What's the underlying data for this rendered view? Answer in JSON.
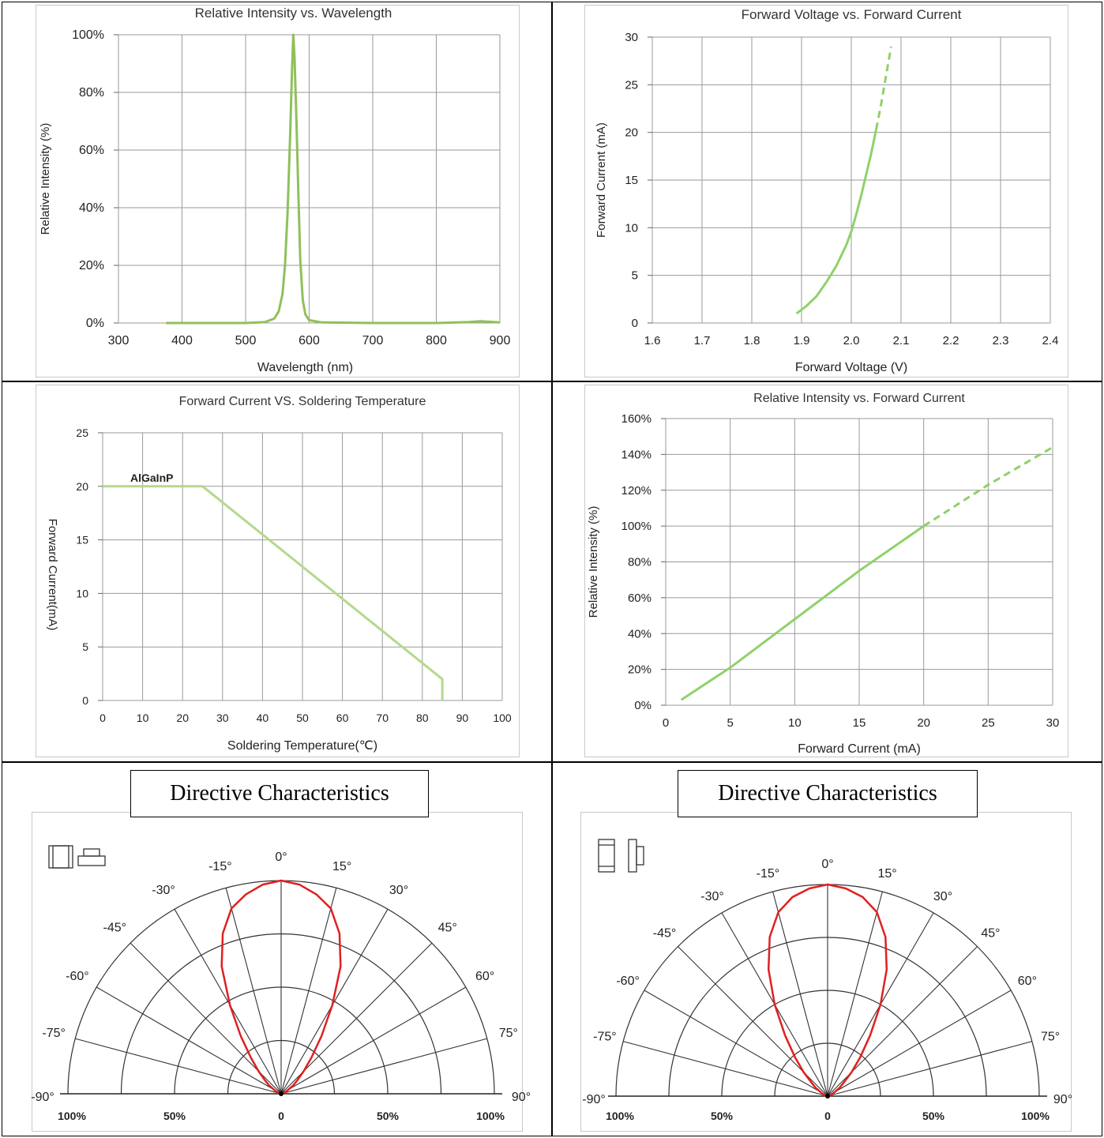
{
  "chart_data": [
    {
      "type": "line",
      "title": "Relative Intensity vs. Wavelength",
      "xlabel": "Wavelength (nm)",
      "ylabel": "Relative Intensity (%)",
      "xlim": [
        300,
        900
      ],
      "ylim": [
        0,
        100
      ],
      "x_ticks": [
        "300",
        "400",
        "500",
        "600",
        "700",
        "800",
        "900"
      ],
      "y_ticks": [
        "0%",
        "20%",
        "40%",
        "60%",
        "80%",
        "100%"
      ],
      "grid": true,
      "line_color": "#8fc05a",
      "series": [
        {
          "x": [
            375,
            500,
            530,
            545,
            552,
            558,
            562,
            566,
            570,
            573,
            575,
            577,
            580,
            583,
            586,
            590,
            594,
            600,
            620,
            700,
            800,
            850,
            870,
            885,
            900
          ],
          "y": [
            0,
            0,
            0.3,
            1.5,
            4,
            10,
            20,
            38,
            65,
            88,
            100,
            92,
            70,
            45,
            22,
            8,
            3,
            1,
            0.2,
            0,
            0,
            0.3,
            0.6,
            0.4,
            0.2
          ]
        }
      ]
    },
    {
      "type": "line",
      "title": "Forward Voltage vs. Forward Current",
      "xlabel": "Forward Voltage (V)",
      "ylabel": "Forward Current (mA)",
      "xlim": [
        1.6,
        2.4
      ],
      "ylim": [
        0,
        30
      ],
      "x_ticks": [
        "1.6",
        "1.7",
        "1.8",
        "1.9",
        "2.0",
        "2.1",
        "2.2",
        "2.3",
        "2.4"
      ],
      "y_ticks": [
        "0",
        "5",
        "10",
        "15",
        "20",
        "25",
        "30"
      ],
      "grid": true,
      "line_color": "#8fd16a",
      "series": [
        {
          "style": "solid",
          "x": [
            1.89,
            1.91,
            1.93,
            1.95,
            1.97,
            1.99,
            2.0,
            2.01,
            2.02,
            2.03,
            2.04,
            2.05
          ],
          "y": [
            1,
            1.8,
            2.8,
            4.3,
            6.0,
            8.2,
            9.6,
            11.4,
            13.4,
            15.6,
            17.8,
            20.3
          ]
        },
        {
          "style": "dashed",
          "x": [
            2.05,
            2.06,
            2.07,
            2.08
          ],
          "y": [
            20.3,
            23.0,
            26.0,
            29.0
          ]
        }
      ]
    },
    {
      "type": "line",
      "title": "Forward Current VS. Soldering Temperature",
      "xlabel": "Soldering Temperature(℃)",
      "ylabel": "Forward Current(mA)",
      "xlim": [
        0,
        100
      ],
      "ylim": [
        0,
        25
      ],
      "x_ticks": [
        "0",
        "10",
        "20",
        "30",
        "40",
        "50",
        "60",
        "70",
        "80",
        "90",
        "100"
      ],
      "y_ticks": [
        "0",
        "5",
        "10",
        "15",
        "20",
        "25"
      ],
      "grid": true,
      "line_color": "#b5d88c",
      "annotation": "AlGaInP",
      "series": [
        {
          "x": [
            0,
            25,
            85,
            85
          ],
          "y": [
            20,
            20,
            2,
            0
          ]
        }
      ]
    },
    {
      "type": "line",
      "title": "Relative Intensity vs. Forward Current",
      "xlabel": "Forward Current (mA)",
      "ylabel": "Relative Intensity (%)",
      "xlim": [
        0,
        30
      ],
      "ylim": [
        0,
        160
      ],
      "x_ticks": [
        "0",
        "5",
        "10",
        "15",
        "20",
        "25",
        "30"
      ],
      "y_ticks": [
        "0%",
        "20%",
        "40%",
        "60%",
        "80%",
        "100%",
        "120%",
        "140%",
        "160%"
      ],
      "grid": true,
      "line_color": "#8fd16a",
      "series": [
        {
          "style": "solid",
          "x": [
            1.2,
            5,
            10,
            15,
            20
          ],
          "y": [
            3,
            21,
            48,
            75,
            100
          ]
        },
        {
          "style": "dashed",
          "x": [
            20,
            25,
            30
          ],
          "y": [
            100,
            123,
            144
          ]
        }
      ]
    },
    {
      "type": "polar",
      "title": "Directive Characteristics",
      "angle_labels": [
        "-90°",
        "-75°",
        "-60°",
        "-45°",
        "-30°",
        "-15°",
        "0°",
        "15°",
        "30°",
        "45°",
        "60°",
        "75°",
        "90°"
      ],
      "radial_labels": [
        "100%",
        "50%",
        "0",
        "50%",
        "100%"
      ],
      "line_color": "#e02020",
      "series": [
        {
          "angles": [
            0,
            5,
            10,
            15,
            20,
            25,
            30,
            35,
            40,
            45,
            50,
            55,
            60,
            70,
            80,
            90
          ],
          "values": [
            1.0,
            0.985,
            0.95,
            0.9,
            0.8,
            0.66,
            0.48,
            0.33,
            0.22,
            0.15,
            0.1,
            0.07,
            0.04,
            0.02,
            0.005,
            0
          ]
        }
      ]
    },
    {
      "type": "polar",
      "title": "Directive Characteristics",
      "angle_labels": [
        "-90°",
        "-75°",
        "-60°",
        "-45°",
        "-30°",
        "-15°",
        "0°",
        "15°",
        "30°",
        "45°",
        "60°",
        "75°",
        "90°"
      ],
      "radial_labels": [
        "100%",
        "50%",
        "0",
        "50%",
        "100%"
      ],
      "line_color": "#e02020",
      "series": [
        {
          "angles": [
            0,
            5,
            10,
            15,
            20,
            25,
            30,
            35,
            40,
            45,
            50,
            55,
            60,
            70,
            80,
            90
          ],
          "values": [
            1.0,
            0.985,
            0.955,
            0.9,
            0.8,
            0.66,
            0.5,
            0.35,
            0.24,
            0.16,
            0.1,
            0.07,
            0.04,
            0.02,
            0.005,
            0
          ]
        }
      ]
    }
  ]
}
